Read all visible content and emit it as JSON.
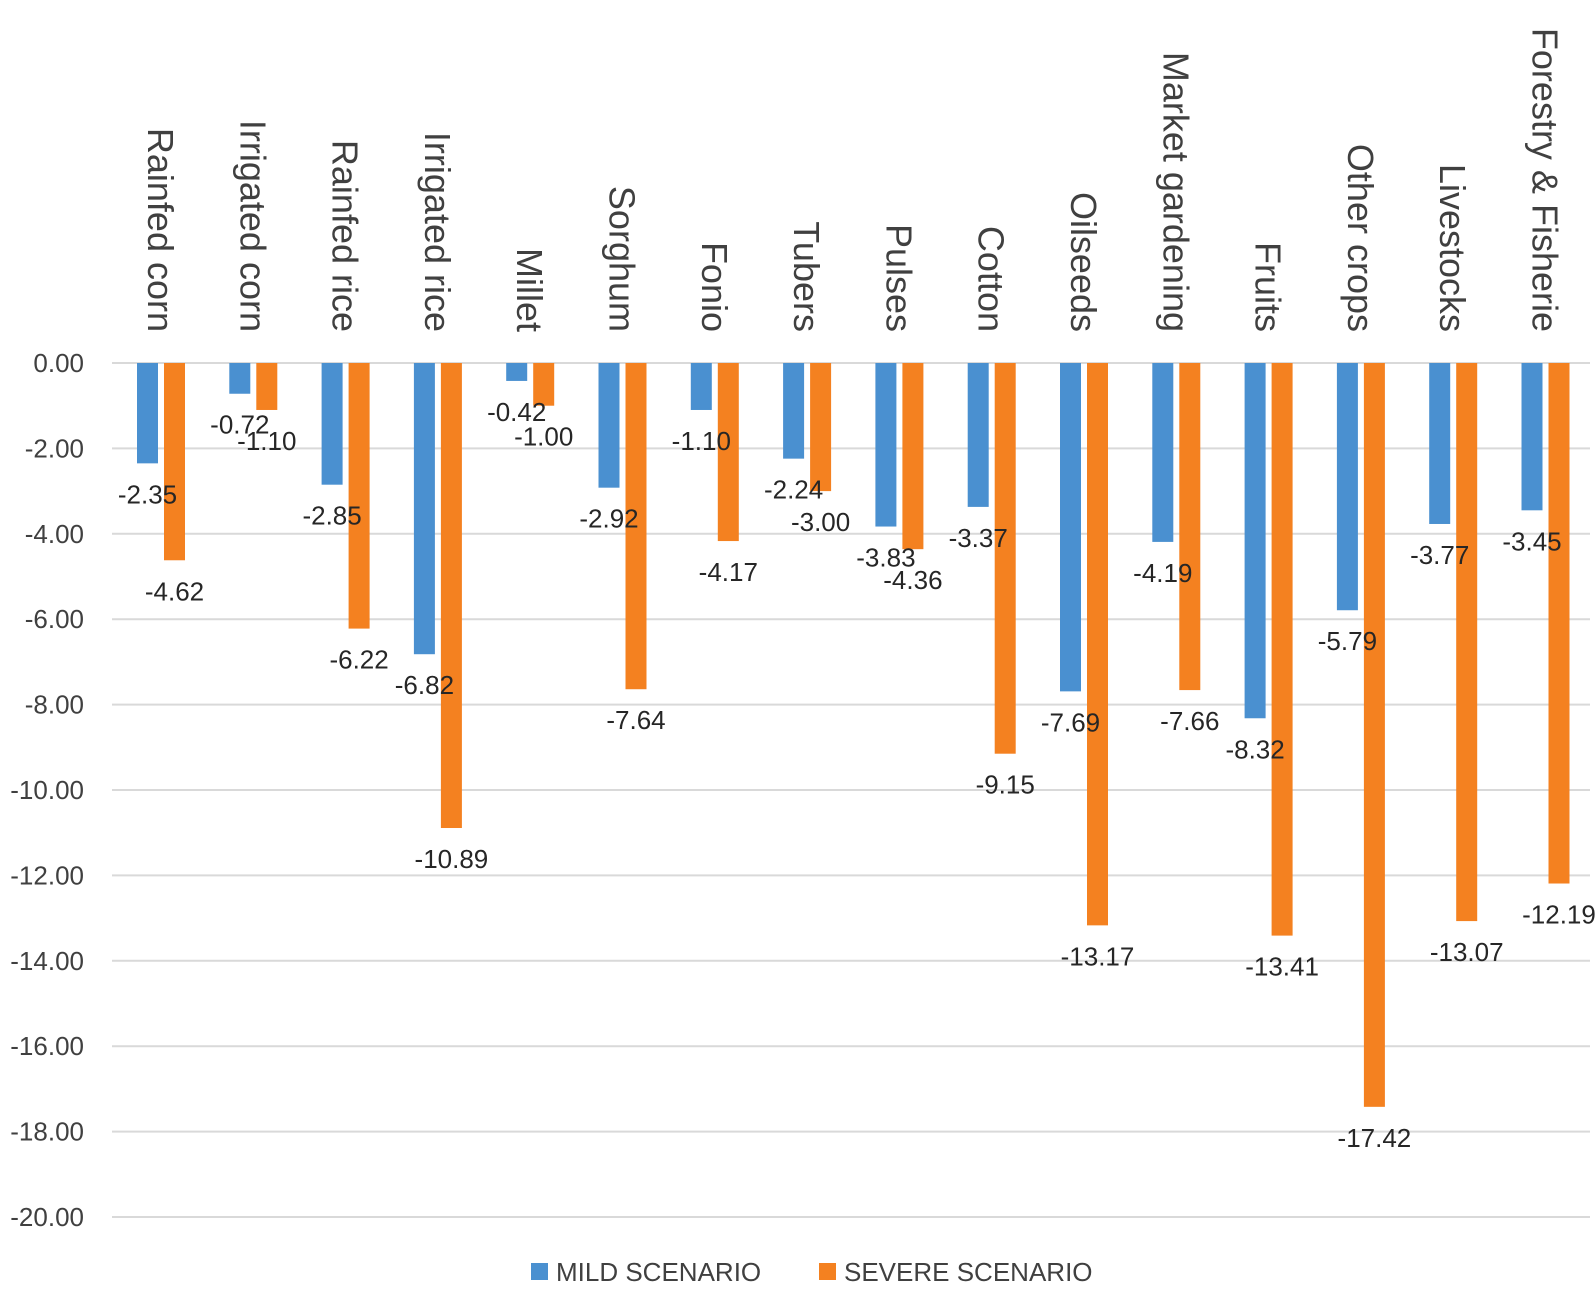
{
  "chart_data": {
    "type": "bar",
    "title": "",
    "xlabel": "",
    "ylabel": "",
    "ylim": [
      -20,
      0
    ],
    "yticks": [
      0,
      -2,
      -4,
      -6,
      -8,
      -10,
      -12,
      -14,
      -16,
      -18,
      -20
    ],
    "ytick_labels": [
      "0.00",
      "-2.00",
      "-4.00",
      "-6.00",
      "-8.00",
      "-10.00",
      "-12.00",
      "-14.00",
      "-16.00",
      "-18.00",
      "-20.00"
    ],
    "grid": true,
    "legend_position": "bottom",
    "categories": [
      "Rainfed corn",
      "Irrigated corn",
      "Rainfed rice",
      "Irrigated rice",
      "Millet",
      "Sorghum",
      "Fonio",
      "Tubers",
      "Pulses",
      "Cotton",
      "Oilseeds",
      "Market gardening",
      "Fruits",
      "Other crops",
      "Livestocks",
      "Forestry & Fisherie"
    ],
    "series": [
      {
        "name": "MILD SCENARIO",
        "color": "#4a90d0",
        "values": [
          -2.35,
          -0.72,
          -2.85,
          -6.82,
          -0.42,
          -2.92,
          -1.1,
          -2.24,
          -3.83,
          -3.37,
          -7.69,
          -4.19,
          -8.32,
          -5.79,
          -3.77,
          -3.45
        ],
        "labels": [
          "-2.35",
          "-0.72",
          "-2.85",
          "-6.82",
          "-0.42",
          "-2.92",
          "-1.10",
          "-2.24",
          "-3.83",
          "-3.37",
          "-7.69",
          "-4.19",
          "-8.32",
          "-5.79",
          "-3.77",
          "-3.45"
        ]
      },
      {
        "name": "SEVERE SCENARIO",
        "color": "#f48120",
        "values": [
          -4.62,
          -1.1,
          -6.22,
          -10.89,
          -1.0,
          -7.64,
          -4.17,
          -3.0,
          -4.36,
          -9.15,
          -13.17,
          -7.66,
          -13.41,
          -17.42,
          -13.07,
          -12.19
        ],
        "labels": [
          "-4.62",
          "-1.10",
          "-6.22",
          "-10.89",
          "-1.00",
          "-7.64",
          "-4.17",
          "-3.00",
          "-4.36",
          "-9.15",
          "-13.17",
          "-7.66",
          "-13.41",
          "-17.42",
          "-13.07",
          "-12.19"
        ]
      }
    ]
  }
}
